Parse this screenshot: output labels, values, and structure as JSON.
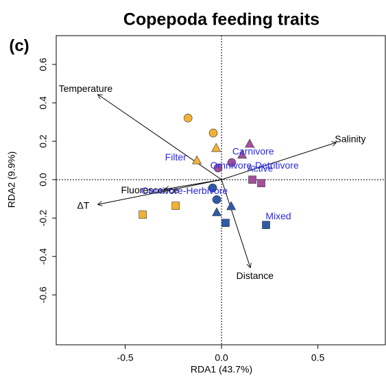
{
  "chart_data": {
    "type": "scatter",
    "title": "Copepoda feeding traits",
    "panel_label": "(c)",
    "xlabel": "RDA1 (43.7%)",
    "ylabel": "RDA2 (9.9%)",
    "xlim": [
      -0.858,
      0.85
    ],
    "ylim": [
      -0.86,
      0.75
    ],
    "xticks": [
      -0.5,
      {
        "value": 0,
        "label": "0.0"
      },
      0.5
    ],
    "yticks": [
      -0.6,
      -0.4,
      -0.2,
      {
        "value": 0,
        "label": "0.0"
      },
      0.2,
      0.4,
      0.6
    ],
    "points": [
      {
        "x": -0.174,
        "y": 0.321,
        "shape": "circle",
        "color": "#f2b134"
      },
      {
        "x": -0.043,
        "y": 0.243,
        "shape": "circle",
        "color": "#f2b134"
      },
      {
        "x": -0.028,
        "y": 0.164,
        "shape": "triangle",
        "color": "#f2b134"
      },
      {
        "x": -0.128,
        "y": 0.1,
        "shape": "triangle",
        "color": "#f2b134"
      },
      {
        "x": -0.238,
        "y": -0.136,
        "shape": "square",
        "color": "#f2b134"
      },
      {
        "x": -0.409,
        "y": -0.182,
        "shape": "square",
        "color": "#f2b134"
      },
      {
        "x": 0.146,
        "y": 0.186,
        "shape": "triangle",
        "color": "#a2509c"
      },
      {
        "x": 0.107,
        "y": 0.129,
        "shape": "triangle",
        "color": "#a2509c"
      },
      {
        "x": 0.053,
        "y": 0.089,
        "shape": "circle",
        "color": "#a2509c"
      },
      {
        "x": -0.018,
        "y": 0.061,
        "shape": "circle",
        "color": "#a2509c"
      },
      {
        "x": 0.16,
        "y": 0.0,
        "shape": "square",
        "color": "#a2509c"
      },
      {
        "x": 0.206,
        "y": -0.018,
        "shape": "square",
        "color": "#a2509c"
      },
      {
        "x": -0.046,
        "y": -0.043,
        "shape": "circle",
        "color": "#2e5ba6"
      },
      {
        "x": -0.025,
        "y": -0.104,
        "shape": "circle",
        "color": "#2e5ba6"
      },
      {
        "x": 0.05,
        "y": -0.139,
        "shape": "triangle",
        "color": "#2e5ba6"
      },
      {
        "x": -0.025,
        "y": -0.171,
        "shape": "triangle",
        "color": "#2e5ba6"
      },
      {
        "x": 0.021,
        "y": -0.225,
        "shape": "square",
        "color": "#2e5ba6"
      },
      {
        "x": 0.231,
        "y": -0.236,
        "shape": "square",
        "color": "#2e5ba6"
      }
    ],
    "arrows": [
      {
        "label": "Temperature",
        "x": -0.641,
        "y": 0.443
      },
      {
        "label": "Salinity",
        "x": 0.594,
        "y": 0.193
      },
      {
        "label": "ΔT",
        "x": -0.641,
        "y": -0.129
      },
      {
        "label": "Fluorescence",
        "x": -0.295,
        "y": -0.05
      },
      {
        "label": "Distance",
        "x": 0.149,
        "y": -0.457
      }
    ],
    "trait_labels": [
      {
        "label": "Filter",
        "x": -0.238,
        "y": 0.114
      },
      {
        "label": "Carnivore",
        "x": 0.164,
        "y": 0.143
      },
      {
        "label": "Omnivore-Detritivore",
        "x": 0.171,
        "y": 0.071
      },
      {
        "label": "Active",
        "x": 0.2,
        "y": 0.055
      },
      {
        "label": "Omnivore-Herbivore",
        "x": -0.192,
        "y": -0.061
      },
      {
        "label": "Mixed",
        "x": 0.295,
        "y": -0.193
      }
    ]
  }
}
